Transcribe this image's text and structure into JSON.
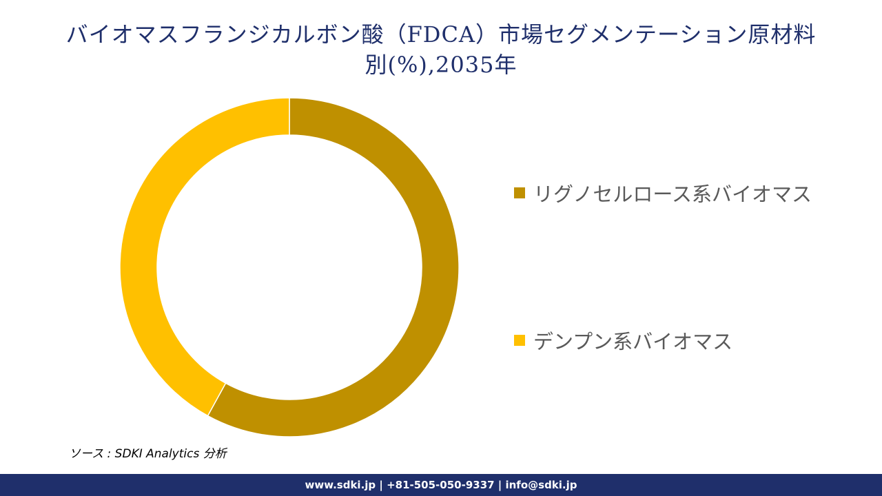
{
  "title": {
    "line1": "バイオマスフランジカルボン酸（FDCA）市場セグメンテーション原材料",
    "line2": "別(%),2035年"
  },
  "chart_data": {
    "type": "pie",
    "donut": true,
    "categories": [
      "リグノセルロース系バイオマス",
      "デンプン系バイオマス"
    ],
    "values": [
      58,
      42
    ],
    "colors": [
      "#bf9000",
      "#ffc000"
    ],
    "legend_position": "right",
    "start_angle_deg": 0,
    "direction": "clockwise"
  },
  "source": "ソース : SDKI Analytics 分析",
  "footer": "www.sdki.jp | +81-505-050-9337 | info@sdki.jp"
}
